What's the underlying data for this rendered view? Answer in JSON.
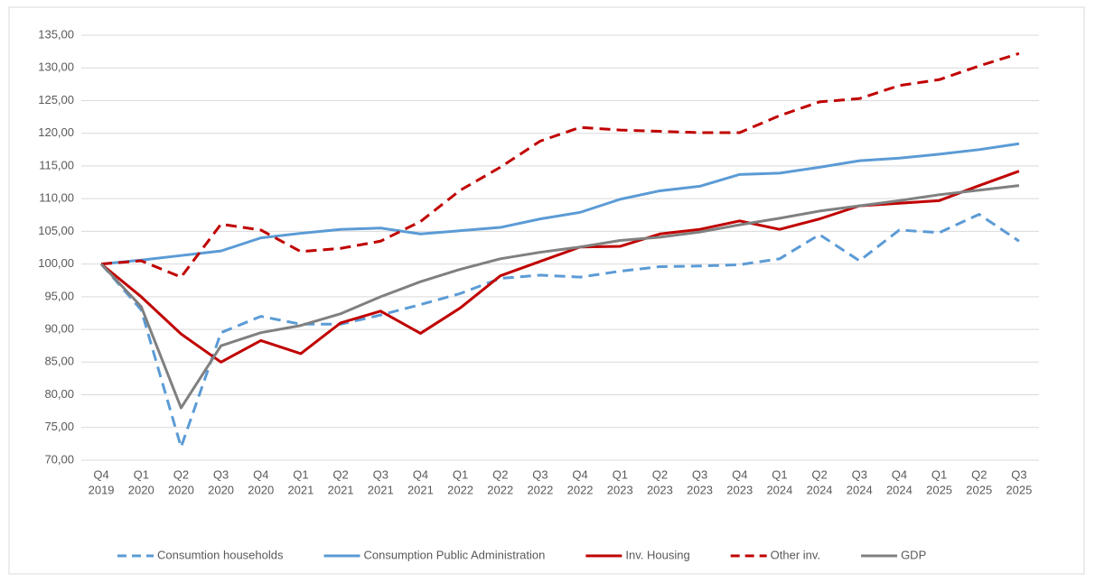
{
  "chart_data": {
    "type": "line",
    "categories": [
      [
        "Q4",
        "2019"
      ],
      [
        "Q1",
        "2020"
      ],
      [
        "Q2",
        "2020"
      ],
      [
        "Q3",
        "2020"
      ],
      [
        "Q4",
        "2020"
      ],
      [
        "Q1",
        "2021"
      ],
      [
        "Q2",
        "2021"
      ],
      [
        "Q3",
        "2021"
      ],
      [
        "Q4",
        "2021"
      ],
      [
        "Q1",
        "2022"
      ],
      [
        "Q2",
        "2022"
      ],
      [
        "Q3",
        "2022"
      ],
      [
        "Q4",
        "2022"
      ],
      [
        "Q1",
        "2023"
      ],
      [
        "Q2",
        "2023"
      ],
      [
        "Q3",
        "2023"
      ],
      [
        "Q4",
        "2023"
      ],
      [
        "Q1",
        "2024"
      ],
      [
        "Q2",
        "2024"
      ],
      [
        "Q3",
        "2024"
      ],
      [
        "Q4",
        "2024"
      ],
      [
        "Q1",
        "2025"
      ],
      [
        "Q2",
        "2025"
      ],
      [
        "Q3",
        "2025"
      ]
    ],
    "series": [
      {
        "name": "Consumtion households",
        "color": "#5b9bd5",
        "dashed": true,
        "values": [
          100,
          93,
          72,
          89.5,
          92,
          90.8,
          90.8,
          92.2,
          93.8,
          95.5,
          97.8,
          98.3,
          98,
          98.9,
          99.6,
          99.7,
          99.9,
          100.8,
          104.5,
          100.5,
          105.2,
          104.8,
          107.6,
          103.5
        ]
      },
      {
        "name": "Consumption Public Administration",
        "color": "#5b9bd5",
        "dashed": false,
        "values": [
          100,
          100.6,
          101.3,
          102,
          104,
          104.7,
          105.3,
          105.5,
          104.6,
          105.1,
          105.6,
          106.9,
          107.9,
          109.9,
          111.2,
          111.9,
          113.7,
          113.9,
          114.8,
          115.8,
          116.2,
          116.8,
          117.5,
          118.4
        ]
      },
      {
        "name": "Inv. Housing",
        "color": "#c00000",
        "dashed": false,
        "values": [
          100,
          95,
          89.3,
          85,
          88.3,
          86.3,
          91,
          92.8,
          89.4,
          93.3,
          98.2,
          100.4,
          102.6,
          102.7,
          104.6,
          105.3,
          106.6,
          105.3,
          106.9,
          108.9,
          109.3,
          109.7,
          112,
          114.2
        ]
      },
      {
        "name": "Other inv.",
        "color": "#c00000",
        "dashed": true,
        "values": [
          100,
          100.5,
          98,
          106.1,
          105.2,
          101.9,
          102.4,
          103.5,
          106.5,
          111.3,
          114.8,
          118.8,
          120.9,
          120.5,
          120.3,
          120.1,
          120.1,
          122.7,
          124.8,
          125.3,
          127.3,
          128.2,
          130.3,
          132.2
        ]
      },
      {
        "name": "GDP",
        "color": "#808080",
        "dashed": false,
        "values": [
          100,
          93.5,
          78,
          87.5,
          89.5,
          90.6,
          92.4,
          95,
          97.3,
          99.2,
          100.8,
          101.8,
          102.6,
          103.6,
          104.1,
          104.9,
          106,
          107,
          108.1,
          108.9,
          109.7,
          110.6,
          111.3,
          112
        ]
      }
    ],
    "ylim": [
      70,
      135
    ],
    "yticks": [
      {
        "value": 70,
        "label": "70,00"
      },
      {
        "value": 75,
        "label": "75,00"
      },
      {
        "value": 80,
        "label": "80,00"
      },
      {
        "value": 85,
        "label": "85,00"
      },
      {
        "value": 90,
        "label": "90,00"
      },
      {
        "value": 95,
        "label": "95,00"
      },
      {
        "value": 100,
        "label": "100,00"
      },
      {
        "value": 105,
        "label": "105,00"
      },
      {
        "value": 110,
        "label": "110,00"
      },
      {
        "value": 115,
        "label": "115,00"
      },
      {
        "value": 120,
        "label": "120,00"
      },
      {
        "value": 125,
        "label": "125,00"
      },
      {
        "value": 130,
        "label": "130,00"
      },
      {
        "value": 135,
        "label": "135,00"
      }
    ],
    "grid": true,
    "legend": "bottom"
  }
}
